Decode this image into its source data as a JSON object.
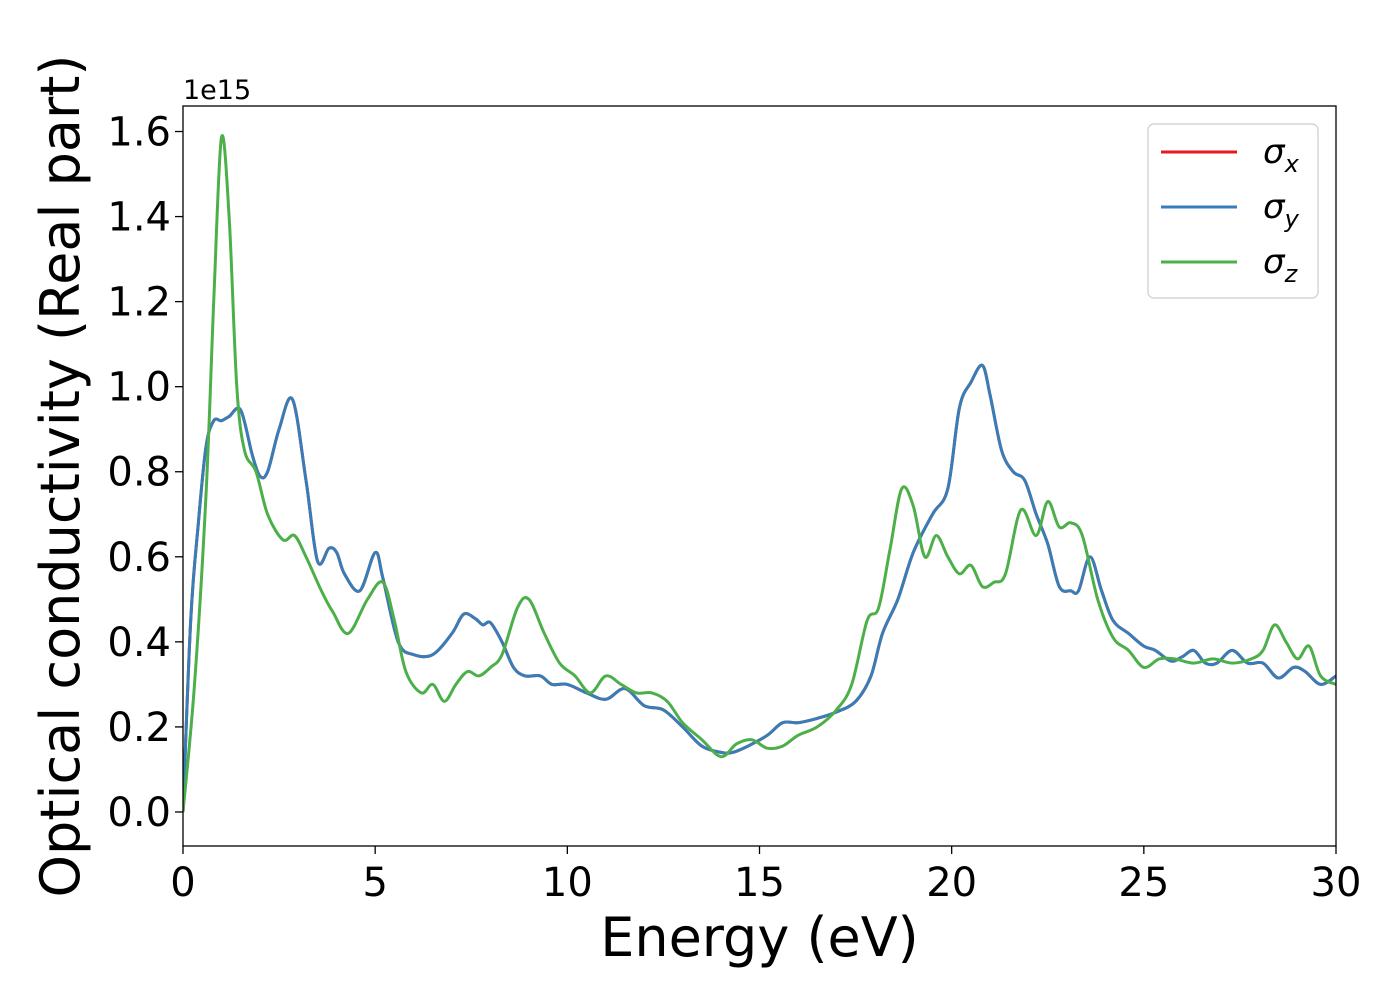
{
  "chart_data": {
    "type": "line",
    "xlabel": "Energy (eV)",
    "ylabel": "Optical conductivity (Real part)",
    "y_offset_label": "1e15",
    "xlim": [
      0,
      30
    ],
    "ylim": [
      -0.08,
      1.66
    ],
    "x_ticks": [
      0,
      5,
      10,
      15,
      20,
      25,
      30
    ],
    "x_tick_labels": [
      "0",
      "5",
      "10",
      "15",
      "20",
      "25",
      "30"
    ],
    "y_ticks": [
      0.0,
      0.2,
      0.4,
      0.6,
      0.8,
      1.0,
      1.2,
      1.4,
      1.6
    ],
    "y_tick_labels": [
      "0.0",
      "0.2",
      "0.4",
      "0.6",
      "0.8",
      "1.0",
      "1.2",
      "1.4",
      "1.6"
    ],
    "grid": false,
    "legend_position": "top-right",
    "series": [
      {
        "name": "σx",
        "legend_main": "σ",
        "legend_sub": "x",
        "color": "#e41a1c",
        "x": [
          0,
          0.2,
          0.4,
          0.6,
          0.8,
          1.0,
          1.2,
          1.5,
          1.8,
          2.0,
          2.2,
          2.5,
          2.85,
          3.2,
          3.5,
          3.8,
          4.0,
          4.2,
          4.6,
          5.0,
          5.2,
          5.6,
          6.0,
          6.5,
          7.0,
          7.3,
          7.6,
          7.8,
          8.0,
          8.3,
          8.6,
          8.9,
          9.3,
          9.6,
          10.0,
          10.5,
          11.0,
          11.5,
          12.0,
          12.5,
          13.0,
          13.5,
          14.0,
          14.3,
          14.7,
          15.2,
          15.6,
          16.0,
          16.5,
          17.0,
          17.5,
          17.9,
          18.2,
          18.6,
          19.0,
          19.5,
          19.9,
          20.2,
          20.5,
          20.8,
          21.0,
          21.3,
          21.6,
          21.9,
          22.2,
          22.5,
          22.8,
          23.1,
          23.3,
          23.6,
          23.9,
          24.2,
          24.6,
          25.0,
          25.3,
          25.7,
          26.0,
          26.3,
          26.6,
          26.9,
          27.3,
          27.7,
          28.1,
          28.5,
          28.9,
          29.2,
          29.6,
          30.0
        ],
        "values": [
          0.0,
          0.45,
          0.68,
          0.86,
          0.92,
          0.92,
          0.93,
          0.945,
          0.84,
          0.79,
          0.8,
          0.9,
          0.97,
          0.78,
          0.59,
          0.62,
          0.61,
          0.56,
          0.52,
          0.61,
          0.55,
          0.4,
          0.37,
          0.37,
          0.42,
          0.465,
          0.455,
          0.44,
          0.445,
          0.4,
          0.34,
          0.32,
          0.32,
          0.3,
          0.3,
          0.28,
          0.265,
          0.29,
          0.25,
          0.24,
          0.2,
          0.155,
          0.14,
          0.14,
          0.155,
          0.18,
          0.21,
          0.21,
          0.22,
          0.235,
          0.26,
          0.32,
          0.42,
          0.5,
          0.61,
          0.7,
          0.76,
          0.95,
          1.01,
          1.05,
          0.98,
          0.85,
          0.8,
          0.78,
          0.7,
          0.63,
          0.53,
          0.52,
          0.52,
          0.6,
          0.52,
          0.45,
          0.42,
          0.39,
          0.38,
          0.355,
          0.365,
          0.38,
          0.35,
          0.35,
          0.38,
          0.35,
          0.35,
          0.315,
          0.34,
          0.33,
          0.3,
          0.32
        ]
      },
      {
        "name": "σy",
        "legend_main": "σ",
        "legend_sub": "y",
        "color": "#377eb8",
        "x": [
          0,
          0.2,
          0.4,
          0.6,
          0.8,
          1.0,
          1.2,
          1.5,
          1.8,
          2.0,
          2.2,
          2.5,
          2.85,
          3.2,
          3.5,
          3.8,
          4.0,
          4.2,
          4.6,
          5.0,
          5.2,
          5.6,
          6.0,
          6.5,
          7.0,
          7.3,
          7.6,
          7.8,
          8.0,
          8.3,
          8.6,
          8.9,
          9.3,
          9.6,
          10.0,
          10.5,
          11.0,
          11.5,
          12.0,
          12.5,
          13.0,
          13.5,
          14.0,
          14.3,
          14.7,
          15.2,
          15.6,
          16.0,
          16.5,
          17.0,
          17.5,
          17.9,
          18.2,
          18.6,
          19.0,
          19.5,
          19.9,
          20.2,
          20.5,
          20.8,
          21.0,
          21.3,
          21.6,
          21.9,
          22.2,
          22.5,
          22.8,
          23.1,
          23.3,
          23.6,
          23.9,
          24.2,
          24.6,
          25.0,
          25.3,
          25.7,
          26.0,
          26.3,
          26.6,
          26.9,
          27.3,
          27.7,
          28.1,
          28.5,
          28.9,
          29.2,
          29.6,
          30.0
        ],
        "values": [
          0.0,
          0.45,
          0.68,
          0.86,
          0.92,
          0.92,
          0.93,
          0.945,
          0.84,
          0.79,
          0.8,
          0.9,
          0.97,
          0.78,
          0.59,
          0.62,
          0.61,
          0.56,
          0.52,
          0.61,
          0.55,
          0.4,
          0.37,
          0.37,
          0.42,
          0.465,
          0.455,
          0.44,
          0.445,
          0.4,
          0.34,
          0.32,
          0.32,
          0.3,
          0.3,
          0.28,
          0.265,
          0.29,
          0.25,
          0.24,
          0.2,
          0.155,
          0.14,
          0.14,
          0.155,
          0.18,
          0.21,
          0.21,
          0.22,
          0.235,
          0.26,
          0.32,
          0.42,
          0.5,
          0.61,
          0.7,
          0.76,
          0.95,
          1.01,
          1.05,
          0.98,
          0.85,
          0.8,
          0.78,
          0.7,
          0.63,
          0.53,
          0.52,
          0.52,
          0.6,
          0.52,
          0.45,
          0.42,
          0.39,
          0.38,
          0.355,
          0.365,
          0.38,
          0.35,
          0.35,
          0.38,
          0.35,
          0.35,
          0.315,
          0.34,
          0.33,
          0.3,
          0.32
        ]
      },
      {
        "name": "σz",
        "legend_main": "σ",
        "legend_sub": "z",
        "color": "#4daf4a",
        "x": [
          0,
          0.3,
          0.6,
          0.8,
          1.0,
          1.2,
          1.4,
          1.6,
          1.9,
          2.2,
          2.6,
          2.9,
          3.2,
          3.6,
          3.9,
          4.3,
          4.8,
          5.2,
          5.5,
          5.8,
          6.2,
          6.5,
          6.8,
          7.1,
          7.4,
          7.7,
          8.0,
          8.3,
          8.7,
          9.0,
          9.4,
          9.8,
          10.2,
          10.6,
          11.0,
          11.4,
          11.8,
          12.2,
          12.6,
          13.0,
          13.5,
          14.0,
          14.4,
          14.8,
          15.2,
          15.6,
          16.0,
          16.5,
          17.0,
          17.4,
          17.8,
          18.1,
          18.4,
          18.7,
          19.0,
          19.3,
          19.6,
          19.9,
          20.2,
          20.5,
          20.8,
          21.1,
          21.4,
          21.8,
          22.2,
          22.5,
          22.8,
          23.1,
          23.4,
          23.8,
          24.2,
          24.6,
          25.0,
          25.4,
          25.8,
          26.3,
          26.8,
          27.3,
          27.8,
          28.1,
          28.4,
          28.7,
          29.0,
          29.3,
          29.6,
          30.0
        ],
        "values": [
          0.0,
          0.3,
          0.75,
          1.2,
          1.585,
          1.4,
          1.0,
          0.85,
          0.8,
          0.7,
          0.64,
          0.65,
          0.6,
          0.52,
          0.47,
          0.42,
          0.5,
          0.54,
          0.45,
          0.33,
          0.28,
          0.3,
          0.26,
          0.3,
          0.33,
          0.32,
          0.34,
          0.37,
          0.48,
          0.5,
          0.42,
          0.35,
          0.32,
          0.28,
          0.32,
          0.3,
          0.28,
          0.28,
          0.26,
          0.21,
          0.17,
          0.13,
          0.16,
          0.17,
          0.15,
          0.155,
          0.18,
          0.2,
          0.24,
          0.3,
          0.45,
          0.48,
          0.62,
          0.76,
          0.72,
          0.6,
          0.65,
          0.6,
          0.56,
          0.58,
          0.53,
          0.54,
          0.56,
          0.71,
          0.65,
          0.73,
          0.67,
          0.68,
          0.65,
          0.5,
          0.41,
          0.38,
          0.34,
          0.36,
          0.36,
          0.35,
          0.36,
          0.35,
          0.36,
          0.38,
          0.44,
          0.4,
          0.36,
          0.39,
          0.32,
          0.3
        ]
      }
    ]
  }
}
